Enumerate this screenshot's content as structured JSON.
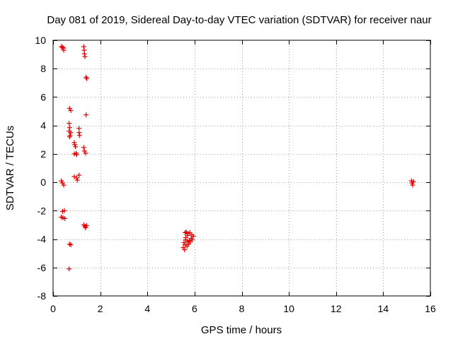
{
  "chart_data": {
    "type": "scatter",
    "title": "Day 081 of 2019, Sidereal Day-to-day VTEC variation (SDTVAR) for receiver naur",
    "xlabel": "GPS time / hours",
    "ylabel": "SDTVAR / TECUs",
    "xlim": [
      0,
      16
    ],
    "ylim": [
      -8,
      10
    ],
    "xticks": [
      0,
      2,
      4,
      6,
      8,
      10,
      12,
      14,
      16
    ],
    "yticks": [
      -8,
      -6,
      -4,
      -2,
      0,
      2,
      4,
      6,
      8,
      10
    ],
    "grid": true,
    "marker": "plus",
    "color": "#e00000",
    "series": [
      {
        "name": "SDTVAR",
        "points": [
          [
            0.35,
            9.55
          ],
          [
            0.4,
            9.5
          ],
          [
            0.45,
            9.45
          ],
          [
            0.45,
            9.3
          ],
          [
            1.3,
            9.55
          ],
          [
            1.32,
            9.3
          ],
          [
            1.33,
            9.05
          ],
          [
            1.35,
            8.85
          ],
          [
            1.4,
            7.4
          ],
          [
            1.43,
            7.3
          ],
          [
            0.7,
            5.2
          ],
          [
            0.75,
            5.05
          ],
          [
            1.4,
            4.75
          ],
          [
            0.68,
            4.15
          ],
          [
            0.7,
            3.85
          ],
          [
            0.68,
            3.6
          ],
          [
            0.75,
            3.5
          ],
          [
            0.72,
            3.3
          ],
          [
            0.7,
            3.2
          ],
          [
            1.1,
            3.8
          ],
          [
            1.1,
            3.5
          ],
          [
            1.12,
            3.3
          ],
          [
            0.9,
            2.8
          ],
          [
            0.92,
            2.65
          ],
          [
            0.95,
            2.5
          ],
          [
            0.98,
            2.05
          ],
          [
            1.0,
            1.95
          ],
          [
            0.9,
            2.0
          ],
          [
            1.3,
            2.45
          ],
          [
            1.33,
            2.2
          ],
          [
            1.38,
            2.05
          ],
          [
            0.9,
            0.4
          ],
          [
            1.0,
            0.3
          ],
          [
            1.03,
            0.15
          ],
          [
            1.1,
            0.5
          ],
          [
            0.35,
            0.1
          ],
          [
            0.4,
            -0.05
          ],
          [
            0.45,
            -0.2
          ],
          [
            0.4,
            -2.05
          ],
          [
            0.48,
            -2.0
          ],
          [
            0.35,
            -2.45
          ],
          [
            0.42,
            -2.5
          ],
          [
            0.5,
            -2.55
          ],
          [
            1.3,
            -3.0
          ],
          [
            1.35,
            -3.1
          ],
          [
            1.38,
            -3.2
          ],
          [
            1.42,
            -3.05
          ],
          [
            0.7,
            -4.35
          ],
          [
            0.75,
            -4.4
          ],
          [
            0.68,
            -6.1
          ],
          [
            5.6,
            -3.55
          ],
          [
            5.65,
            -3.5
          ],
          [
            5.72,
            -3.6
          ],
          [
            5.8,
            -3.55
          ],
          [
            5.88,
            -3.7
          ],
          [
            5.95,
            -3.8
          ],
          [
            5.85,
            -3.95
          ],
          [
            5.9,
            -4.05
          ],
          [
            5.78,
            -4.1
          ],
          [
            5.7,
            -4.15
          ],
          [
            5.62,
            -4.05
          ],
          [
            5.55,
            -4.25
          ],
          [
            5.6,
            -4.4
          ],
          [
            5.52,
            -4.6
          ],
          [
            5.58,
            -4.75
          ],
          [
            5.68,
            -4.5
          ],
          [
            5.75,
            -4.35
          ],
          [
            5.82,
            -4.2
          ],
          [
            5.7,
            -3.75
          ],
          [
            5.62,
            -3.9
          ],
          [
            15.2,
            0.1
          ],
          [
            15.22,
            -0.05
          ],
          [
            15.25,
            -0.2
          ],
          [
            15.28,
            0.05
          ]
        ]
      }
    ]
  }
}
